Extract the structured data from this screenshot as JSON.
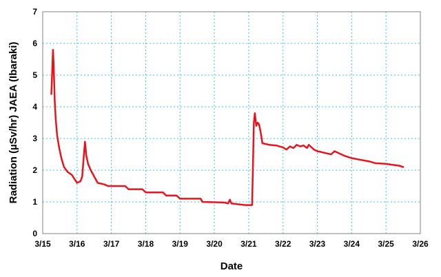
{
  "chart_data": {
    "type": "line",
    "title": "",
    "xlabel": "Date",
    "ylabel": "Radiation (µSv/hr) JAEA  (Ibaraki)",
    "x_tick_labels": [
      "3/15",
      "3/16",
      "3/17",
      "3/18",
      "3/19",
      "3/20",
      "3/21",
      "3/22",
      "3/23",
      "3/24",
      "3/25",
      "3/26"
    ],
    "y_tick_labels": [
      "0",
      "1",
      "2",
      "3",
      "4",
      "5",
      "6",
      "7"
    ],
    "xlim": [
      "3/15",
      "3/26"
    ],
    "ylim": [
      0,
      7
    ],
    "grid": true,
    "legend": "none",
    "series": [
      {
        "color": "#e8141b",
        "x_unit": "date (day offset within March)",
        "points": [
          [
            15.25,
            4.4
          ],
          [
            15.28,
            5.2
          ],
          [
            15.3,
            5.8
          ],
          [
            15.32,
            5.3
          ],
          [
            15.35,
            4.2
          ],
          [
            15.38,
            3.6
          ],
          [
            15.42,
            3.1
          ],
          [
            15.48,
            2.7
          ],
          [
            15.55,
            2.35
          ],
          [
            15.62,
            2.1
          ],
          [
            15.72,
            1.95
          ],
          [
            15.85,
            1.85
          ],
          [
            16.0,
            1.6
          ],
          [
            16.1,
            1.65
          ],
          [
            16.15,
            1.8
          ],
          [
            16.2,
            2.5
          ],
          [
            16.23,
            2.9
          ],
          [
            16.27,
            2.45
          ],
          [
            16.32,
            2.2
          ],
          [
            16.4,
            2.0
          ],
          [
            16.5,
            1.8
          ],
          [
            16.6,
            1.6
          ],
          [
            16.8,
            1.55
          ],
          [
            16.9,
            1.5
          ],
          [
            17.4,
            1.5
          ],
          [
            17.5,
            1.4
          ],
          [
            17.9,
            1.4
          ],
          [
            18.0,
            1.3
          ],
          [
            18.5,
            1.3
          ],
          [
            18.6,
            1.2
          ],
          [
            18.9,
            1.2
          ],
          [
            19.0,
            1.1
          ],
          [
            19.6,
            1.1
          ],
          [
            19.65,
            1.0
          ],
          [
            20.3,
            0.98
          ],
          [
            20.4,
            0.95
          ],
          [
            20.45,
            1.07
          ],
          [
            20.5,
            0.95
          ],
          [
            20.75,
            0.92
          ],
          [
            20.9,
            0.9
          ],
          [
            21.0,
            0.9
          ],
          [
            21.1,
            0.9
          ],
          [
            21.15,
            3.5
          ],
          [
            21.18,
            3.8
          ],
          [
            21.22,
            3.4
          ],
          [
            21.26,
            3.5
          ],
          [
            21.3,
            3.45
          ],
          [
            21.35,
            3.2
          ],
          [
            21.4,
            2.85
          ],
          [
            21.6,
            2.8
          ],
          [
            21.8,
            2.78
          ],
          [
            22.0,
            2.72
          ],
          [
            22.1,
            2.65
          ],
          [
            22.2,
            2.75
          ],
          [
            22.3,
            2.7
          ],
          [
            22.4,
            2.8
          ],
          [
            22.5,
            2.75
          ],
          [
            22.6,
            2.78
          ],
          [
            22.7,
            2.7
          ],
          [
            22.75,
            2.8
          ],
          [
            22.8,
            2.75
          ],
          [
            22.9,
            2.65
          ],
          [
            23.0,
            2.6
          ],
          [
            23.2,
            2.55
          ],
          [
            23.4,
            2.5
          ],
          [
            23.5,
            2.6
          ],
          [
            23.6,
            2.55
          ],
          [
            23.8,
            2.45
          ],
          [
            24.0,
            2.38
          ],
          [
            24.3,
            2.32
          ],
          [
            24.5,
            2.28
          ],
          [
            24.7,
            2.22
          ],
          [
            25.0,
            2.2
          ],
          [
            25.2,
            2.17
          ],
          [
            25.4,
            2.14
          ],
          [
            25.5,
            2.1
          ]
        ]
      }
    ]
  }
}
